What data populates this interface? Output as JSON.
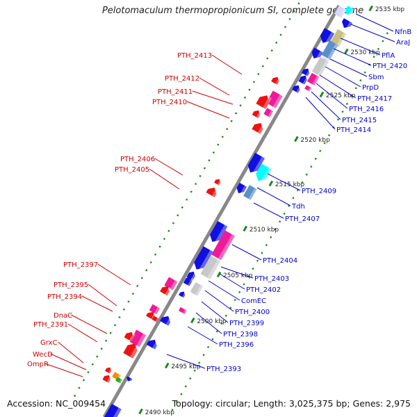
{
  "title": "Pelotomaculum thermopropionicum SI, complete genome",
  "footer": {
    "accession": "Accession: NC_009454",
    "summary": "Topology: circular; Length: 3,025,375 bp; Genes: 2,975"
  },
  "colors": {
    "left_labels": "#cc0000",
    "right_labels": "#0000cc",
    "backbone": "#888888",
    "ticks": "#1a8a1a",
    "blue_gene": "#1010e0",
    "red_gene": "#ee1111",
    "pink_gene": "#ee1a99",
    "cyan_gene": "#00ffff",
    "gray_gene": "#c8c8c8",
    "steel_gene": "#5b8fc7",
    "khaki_gene": "#c8c080",
    "lavender_gene": "#d8d8ff",
    "orange_gene": "#ff8800",
    "green_gene": "#22aa22"
  },
  "kbp_ticks": [
    "2535 kbp",
    "2530 kbp",
    "2525 kbp",
    "2520 kbp",
    "2515 kbp",
    "2510 kbp",
    "2505 kbp",
    "2500 kbp",
    "2495 kbp",
    "2490 kbp"
  ],
  "left_labels": [
    "PTH_2413",
    "PTH_2412",
    "PTH_2411",
    "PTH_2410",
    "PTH_2406",
    "PTH_2405",
    "PTH_2397",
    "PTH_2395",
    "PTH_2394",
    "DnaC",
    "PTH_2391",
    "GrxC",
    "WecD",
    "OmpR"
  ],
  "right_labels": [
    "NfnB",
    "AraJ",
    "PflA",
    "PTH_2420",
    "Sbm",
    "PrpD",
    "PTH_2417",
    "PTH_2416",
    "PTH_2415",
    "PTH_2414",
    "PTH_2409",
    "Tdh",
    "PTH_2407",
    "PTH_2404",
    "PTH_2403",
    "PTH_2402",
    "ComEC",
    "PTH_2400",
    "PTH_2399",
    "PTH_2398",
    "PTH_2396",
    "PTH_2393"
  ]
}
